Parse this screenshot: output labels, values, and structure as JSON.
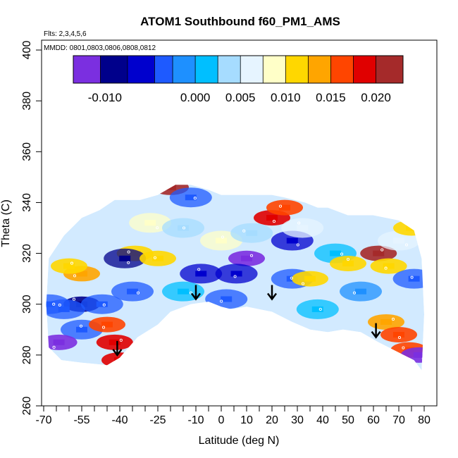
{
  "chart_data": {
    "type": "heatmap",
    "title": "ATOM1 Southbound f60_PM1_AMS",
    "annotations": {
      "flights": "Flts: 2,3,4,5,6",
      "dates": "MMDD: 0801,0803,0806,0808,0812"
    },
    "xlabel": "Latitude (deg N)",
    "ylabel": "Theta (C)",
    "xlim": [
      -70,
      80
    ],
    "ylim": [
      260,
      400
    ],
    "x_tick_labels": [
      "-70",
      "-55",
      "-40",
      "-25",
      "-10",
      "0",
      "10",
      "20",
      "30",
      "40",
      "50",
      "60",
      "70",
      "80"
    ],
    "x_tick_values": [
      -70,
      -55,
      -40,
      -25,
      -10,
      0,
      10,
      20,
      30,
      40,
      50,
      60,
      70,
      80
    ],
    "x_minor_ticks": [
      -65,
      -60,
      -50,
      -45,
      -35,
      -30,
      -20,
      -15,
      -5,
      5,
      15,
      25,
      35,
      45,
      55,
      65,
      75
    ],
    "y_tick_labels": [
      "260",
      "280",
      "300",
      "320",
      "340",
      "360",
      "380",
      "400"
    ],
    "y_tick_values": [
      260,
      280,
      300,
      320,
      340,
      360,
      380,
      400
    ],
    "colorbar": {
      "range": [
        -0.0135,
        0.023
      ],
      "tick_labels": [
        "-0.010",
        "0.000",
        "0.005",
        "0.010",
        "0.015",
        "0.020"
      ],
      "tick_values": [
        -0.01,
        0.0,
        0.005,
        0.01,
        0.015,
        0.02
      ],
      "divisions": [
        -0.0135,
        -0.0105,
        -0.0075,
        -0.0045,
        -0.0025,
        0.0,
        0.0025,
        0.005,
        0.0075,
        0.01,
        0.0125,
        0.015,
        0.0175,
        0.02,
        0.023
      ],
      "colors": [
        "#7b2fe0",
        "#00008b",
        "#0000cd",
        "#1e5aff",
        "#1e90ff",
        "#00bfff",
        "#a6dcff",
        "#e6f4ff",
        "#ffffc8",
        "#ffd700",
        "#ffa500",
        "#ff4500",
        "#e00000",
        "#a52a2a"
      ]
    },
    "envelope_bottom": [
      [
        -68,
        283
      ],
      [
        -63,
        278
      ],
      [
        -55,
        277
      ],
      [
        -45,
        276
      ],
      [
        -40,
        279
      ],
      [
        -33,
        287
      ],
      [
        -25,
        292
      ],
      [
        -20,
        297
      ],
      [
        -12,
        300
      ],
      [
        -5,
        301
      ],
      [
        0,
        299
      ],
      [
        4,
        298
      ],
      [
        10,
        299
      ],
      [
        20,
        297
      ],
      [
        28,
        293
      ],
      [
        35,
        290
      ],
      [
        42,
        289
      ],
      [
        48,
        290
      ],
      [
        55,
        289
      ],
      [
        62,
        285
      ],
      [
        70,
        281
      ],
      [
        76,
        278
      ],
      [
        79,
        274
      ]
    ],
    "envelope_top": [
      [
        79,
        274
      ],
      [
        80,
        296
      ],
      [
        79,
        318
      ],
      [
        76,
        329
      ],
      [
        70,
        333
      ],
      [
        60,
        335
      ],
      [
        50,
        335
      ],
      [
        42,
        338
      ],
      [
        38,
        338
      ],
      [
        33,
        340
      ],
      [
        25,
        342
      ],
      [
        20,
        343
      ],
      [
        15,
        343
      ],
      [
        8,
        343
      ],
      [
        0,
        343
      ],
      [
        -5,
        345
      ],
      [
        -12,
        347
      ],
      [
        -18,
        347
      ],
      [
        -25,
        343
      ],
      [
        -32,
        341
      ],
      [
        -37,
        341
      ],
      [
        -42,
        341
      ],
      [
        -48,
        337
      ],
      [
        -55,
        334
      ],
      [
        -62,
        327
      ],
      [
        -68,
        318
      ],
      [
        -69,
        300
      ]
    ],
    "patches": [
      {
        "lat": -55,
        "theta": 300,
        "value": -0.0105
      },
      {
        "lat": -47,
        "theta": 300,
        "value": -0.004
      },
      {
        "lat": -62,
        "theta": 298,
        "value": -0.003
      },
      {
        "lat": -35,
        "theta": 305,
        "value": -0.004
      },
      {
        "lat": -55,
        "theta": 290,
        "value": -0.003
      },
      {
        "lat": -55,
        "theta": 312,
        "value": 0.013
      },
      {
        "lat": -60,
        "theta": 315,
        "value": 0.012
      },
      {
        "lat": -45,
        "theta": 292,
        "value": 0.016
      },
      {
        "lat": -42,
        "theta": 285,
        "value": 0.019
      },
      {
        "lat": -40,
        "theta": 278,
        "value": 0.018
      },
      {
        "lat": -34,
        "theta": 320,
        "value": 0.012
      },
      {
        "lat": -38,
        "theta": 318,
        "value": -0.008
      },
      {
        "lat": -25,
        "theta": 318,
        "value": 0.011
      },
      {
        "lat": -28,
        "theta": 332,
        "value": 0.008
      },
      {
        "lat": -15,
        "theta": 330,
        "value": 0.003
      },
      {
        "lat": -20,
        "theta": 346,
        "value": 0.022
      },
      {
        "lat": -12,
        "theta": 342,
        "value": -0.004
      },
      {
        "lat": -8,
        "theta": 312,
        "value": -0.005
      },
      {
        "lat": -15,
        "theta": 305,
        "value": 0.001
      },
      {
        "lat": 0,
        "theta": 325,
        "value": 0.009
      },
      {
        "lat": 2,
        "theta": 302,
        "value": -0.004
      },
      {
        "lat": 10,
        "theta": 318,
        "value": -0.011
      },
      {
        "lat": 6,
        "theta": 312,
        "value": -0.006
      },
      {
        "lat": 12,
        "theta": 328,
        "value": 0.003
      },
      {
        "lat": 20,
        "theta": 334,
        "value": 0.018
      },
      {
        "lat": 25,
        "theta": 338,
        "value": 0.015
      },
      {
        "lat": 28,
        "theta": 325,
        "value": -0.005
      },
      {
        "lat": 28,
        "theta": 310,
        "value": -0.004
      },
      {
        "lat": 35,
        "theta": 310,
        "value": 0.011
      },
      {
        "lat": 38,
        "theta": 298,
        "value": 0.0
      },
      {
        "lat": 32,
        "theta": 330,
        "value": 0.007
      },
      {
        "lat": 45,
        "theta": 320,
        "value": 0.002
      },
      {
        "lat": 50,
        "theta": 316,
        "value": 0.012
      },
      {
        "lat": 55,
        "theta": 305,
        "value": -0.002
      },
      {
        "lat": 62,
        "theta": 320,
        "value": 0.02
      },
      {
        "lat": 66,
        "theta": 315,
        "value": 0.012
      },
      {
        "lat": 65,
        "theta": 293,
        "value": 0.013
      },
      {
        "lat": 70,
        "theta": 288,
        "value": 0.017
      },
      {
        "lat": 74,
        "theta": 282,
        "value": 0.015
      },
      {
        "lat": 78,
        "theta": 280,
        "value": -0.013
      },
      {
        "lat": 76,
        "theta": 310,
        "value": -0.003
      },
      {
        "lat": 70,
        "theta": 325,
        "value": 0.005
      },
      {
        "lat": 75,
        "theta": 330,
        "value": 0.011
      },
      {
        "lat": -64,
        "theta": 285,
        "value": -0.012
      },
      {
        "lat": -68,
        "theta": 300,
        "value": -0.003
      }
    ],
    "arrows": [
      {
        "lat": -41,
        "theta": 280
      },
      {
        "lat": -10,
        "theta": 302
      },
      {
        "lat": 20,
        "theta": 302
      },
      {
        "lat": 61,
        "theta": 287
      }
    ]
  }
}
